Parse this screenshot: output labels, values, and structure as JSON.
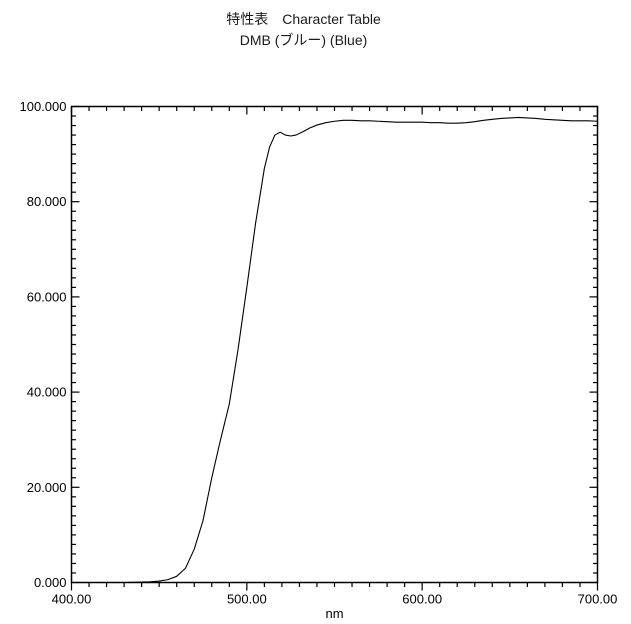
{
  "header": {
    "title": "特性表　Character Table",
    "subtitle": "DMB (ブルー) (Blue)"
  },
  "chart_data": {
    "type": "line",
    "title": "特性表 Character Table",
    "subtitle": "DMB (ブルー) (Blue)",
    "xlabel": "nm",
    "ylabel": "",
    "xlim": [
      400,
      700
    ],
    "ylim": [
      0,
      100
    ],
    "x_major_ticks": [
      400,
      500,
      600,
      700
    ],
    "x_major_labels": [
      "400.00",
      "500.00",
      "600.00",
      "700.00"
    ],
    "x_minor_step": 10,
    "y_major_ticks": [
      0,
      20,
      40,
      60,
      80,
      100
    ],
    "y_major_labels": [
      "0.000",
      "20.000",
      "40.000",
      "60.000",
      "80.000",
      "100.000"
    ],
    "y_minor_step": 2,
    "grid": false,
    "legend": false,
    "line_color": "#000000",
    "frame_color": "#000000",
    "series": [
      {
        "x": [
          400,
          405,
          410,
          415,
          420,
          425,
          430,
          435,
          440,
          445,
          450,
          455,
          460,
          465,
          470,
          475,
          480,
          485,
          490,
          495,
          500,
          505,
          510,
          513,
          516,
          519,
          522,
          525,
          528,
          532,
          536,
          540,
          545,
          550,
          555,
          560,
          565,
          570,
          575,
          580,
          585,
          590,
          595,
          600,
          605,
          610,
          615,
          620,
          625,
          630,
          635,
          640,
          645,
          650,
          655,
          660,
          665,
          670,
          675,
          680,
          685,
          690,
          695,
          700
        ],
        "y": [
          0,
          0,
          0,
          0,
          0,
          0,
          0,
          0.05,
          0.1,
          0.15,
          0.3,
          0.6,
          1.3,
          3,
          7,
          13,
          22,
          30,
          37.5,
          49,
          62,
          75.5,
          87,
          91.5,
          94,
          94.6,
          94,
          93.8,
          94,
          94.7,
          95.5,
          96.1,
          96.6,
          96.9,
          97.1,
          97.1,
          97,
          97,
          96.9,
          96.8,
          96.7,
          96.7,
          96.7,
          96.7,
          96.6,
          96.6,
          96.5,
          96.5,
          96.6,
          96.8,
          97.1,
          97.3,
          97.5,
          97.6,
          97.7,
          97.6,
          97.5,
          97.3,
          97.2,
          97.1,
          97,
          97,
          97,
          96.9
        ]
      }
    ]
  }
}
